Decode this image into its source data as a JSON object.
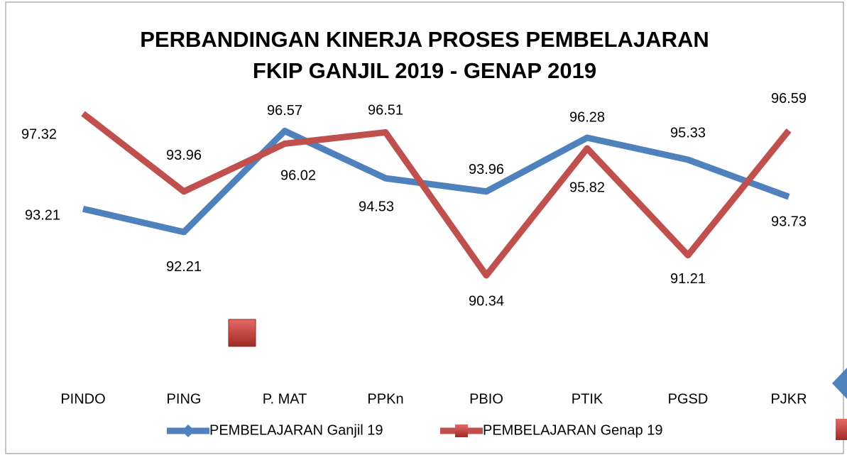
{
  "chart_data": {
    "type": "line",
    "title": [
      "PERBANDINGAN KINERJA  PROSES PEMBELAJARAN",
      "FKIP  GANJIL 2019 - GENAP 2019"
    ],
    "categories": [
      "PINDO",
      "PING",
      "P. MAT",
      "PPKn",
      "PBIO",
      "PTIK",
      "PGSD",
      "PJKR"
    ],
    "series": [
      {
        "name": "PEMBELAJARAN Ganjil 19",
        "color": "#4f81bd",
        "values": [
          93.21,
          92.21,
          96.57,
          94.53,
          93.96,
          96.28,
          95.33,
          93.73
        ]
      },
      {
        "name": "PEMBELAJARAN Genap 19",
        "color": "#c0504d",
        "values": [
          97.32,
          93.96,
          96.02,
          96.51,
          90.34,
          95.82,
          91.21,
          96.59
        ]
      }
    ],
    "legend": "bottom"
  }
}
